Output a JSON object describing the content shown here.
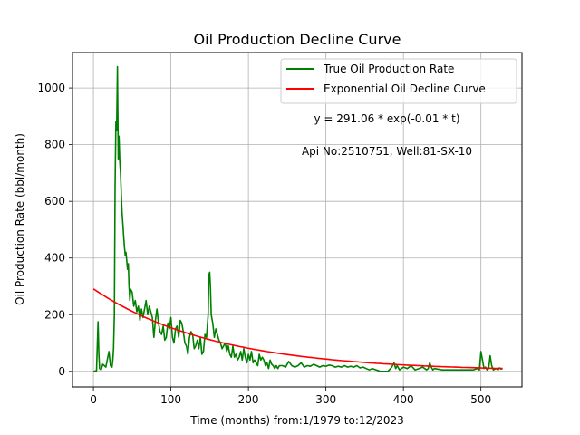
{
  "chart_data": {
    "type": "line",
    "title": "Oil Production Decline Curve",
    "xlabel": "Time (months) from:1/1979 to:12/2023",
    "ylabel": "Oil Production Rate (bbl/month)",
    "xlim": [
      -27,
      553
    ],
    "ylim": [
      -55,
      1125
    ],
    "xticks": [
      0,
      100,
      200,
      300,
      400,
      500
    ],
    "yticks": [
      0,
      200,
      400,
      600,
      800,
      1000
    ],
    "grid": true,
    "legend_position": "top-right",
    "annotations": [
      "y = 291.06 * exp(-0.01 * t)",
      "Api No:2510751, Well:81-SX-10"
    ],
    "series": [
      {
        "name": "True Oil Production Rate",
        "color": "#008000",
        "x": [
          0,
          4,
          6,
          7,
          8,
          10,
          12,
          14,
          16,
          20,
          22,
          24,
          25,
          26,
          27,
          28,
          29,
          30,
          31,
          32,
          33,
          34,
          35,
          36,
          37,
          38,
          39,
          40,
          41,
          42,
          43,
          44,
          45,
          46,
          47,
          48,
          50,
          52,
          54,
          56,
          58,
          60,
          62,
          64,
          66,
          68,
          70,
          72,
          74,
          76,
          78,
          80,
          82,
          84,
          86,
          88,
          90,
          92,
          94,
          96,
          98,
          100,
          102,
          104,
          106,
          108,
          110,
          112,
          114,
          116,
          118,
          120,
          122,
          124,
          126,
          128,
          130,
          132,
          134,
          136,
          138,
          140,
          142,
          144,
          146,
          148,
          149,
          150,
          151,
          152,
          154,
          156,
          158,
          160,
          162,
          164,
          166,
          168,
          170,
          172,
          174,
          176,
          178,
          180,
          182,
          184,
          186,
          188,
          190,
          192,
          194,
          196,
          198,
          200,
          202,
          204,
          206,
          208,
          210,
          212,
          214,
          216,
          218,
          220,
          222,
          224,
          226,
          228,
          230,
          232,
          234,
          236,
          238,
          240,
          244,
          248,
          252,
          256,
          260,
          264,
          268,
          272,
          276,
          280,
          284,
          288,
          292,
          296,
          300,
          304,
          308,
          312,
          316,
          320,
          324,
          328,
          332,
          336,
          340,
          344,
          348,
          352,
          356,
          360,
          370,
          380,
          385,
          388,
          390,
          392,
          395,
          400,
          405,
          410,
          415,
          420,
          425,
          430,
          432,
          434,
          436,
          438,
          440,
          450,
          460,
          470,
          480,
          490,
          495,
          498,
          500,
          502,
          504,
          506,
          508,
          510,
          512,
          514,
          516,
          518,
          520,
          522,
          524,
          526,
          528
        ],
        "values": [
          0,
          2,
          175,
          60,
          10,
          5,
          25,
          20,
          15,
          70,
          20,
          15,
          40,
          80,
          200,
          650,
          880,
          850,
          1075,
          750,
          830,
          740,
          700,
          620,
          560,
          520,
          480,
          440,
          410,
          420,
          390,
          360,
          380,
          300,
          250,
          290,
          280,
          230,
          250,
          210,
          230,
          180,
          220,
          190,
          220,
          250,
          200,
          230,
          210,
          190,
          120,
          180,
          220,
          170,
          140,
          130,
          160,
          110,
          120,
          170,
          150,
          190,
          120,
          100,
          150,
          160,
          120,
          180,
          170,
          140,
          100,
          90,
          60,
          120,
          140,
          130,
          80,
          90,
          110,
          80,
          120,
          60,
          70,
          130,
          120,
          200,
          340,
          350,
          300,
          200,
          170,
          120,
          150,
          130,
          110,
          100,
          80,
          90,
          100,
          70,
          90,
          60,
          50,
          90,
          50,
          60,
          40,
          50,
          70,
          40,
          80,
          50,
          30,
          60,
          40,
          70,
          30,
          40,
          30,
          20,
          60,
          40,
          50,
          40,
          20,
          30,
          10,
          40,
          25,
          20,
          10,
          20,
          10,
          20,
          20,
          15,
          35,
          20,
          15,
          20,
          30,
          15,
          20,
          18,
          25,
          20,
          15,
          20,
          18,
          22,
          20,
          15,
          18,
          15,
          20,
          15,
          18,
          15,
          20,
          12,
          15,
          10,
          5,
          10,
          0,
          0,
          15,
          30,
          10,
          20,
          5,
          15,
          10,
          20,
          5,
          10,
          15,
          5,
          10,
          30,
          15,
          5,
          10,
          5,
          5,
          5,
          5,
          5,
          10,
          5,
          70,
          40,
          10,
          15,
          5,
          10,
          55,
          20,
          5,
          8,
          10,
          5,
          12,
          8,
          10
        ]
      },
      {
        "name": "Exponential Oil Decline Curve",
        "color": "#ff0000",
        "model": {
          "a": 291.06,
          "b": 0.00636
        },
        "x_range": [
          0,
          528
        ]
      }
    ]
  }
}
